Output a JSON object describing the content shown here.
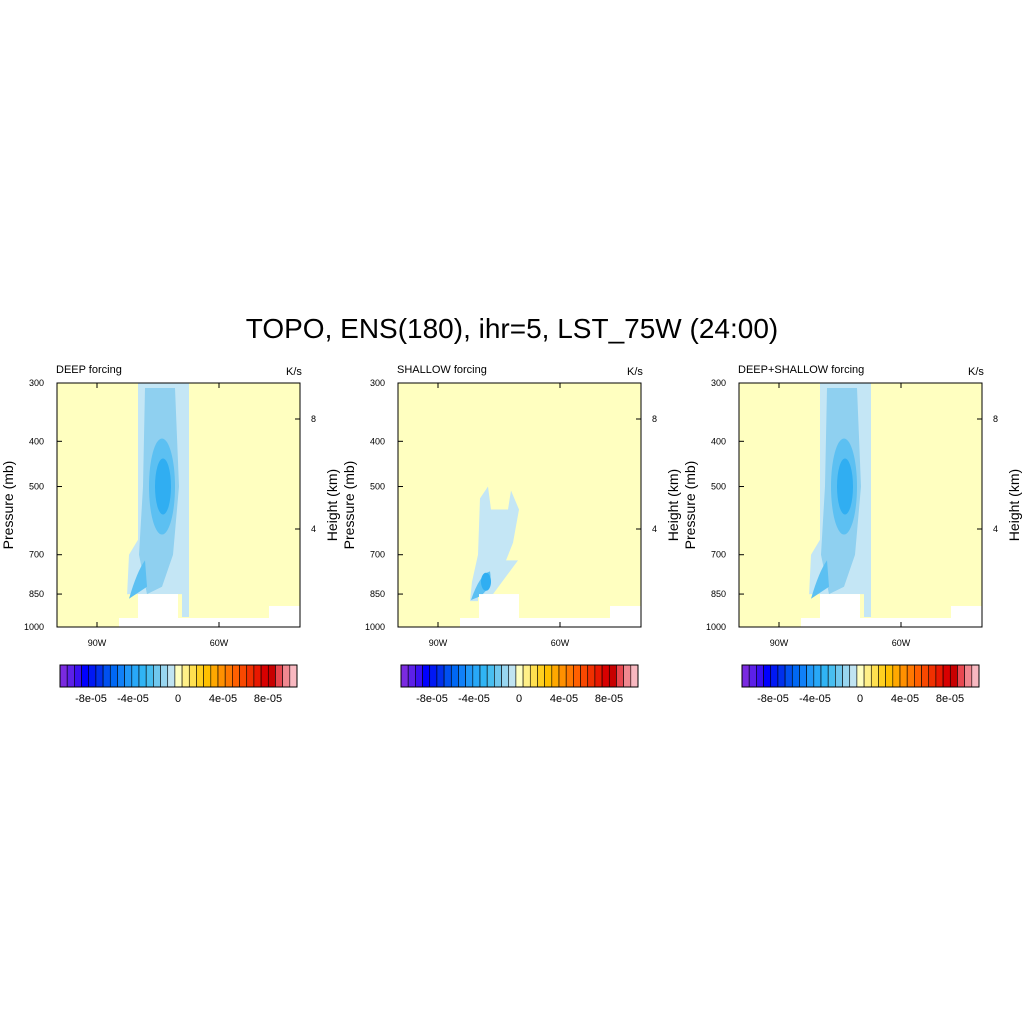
{
  "title": "TOPO, ENS(180), ihr=5, LST_75W (24:00)",
  "colors": {
    "background_field": "#ffffc0",
    "light_blue": "#c4e6f5",
    "mid_blue": "#8fd0f0",
    "deep_blue": "#30aef2",
    "terrain_mask": "#ffffff"
  },
  "colorbar": {
    "labels": [
      "-8e-05",
      "-4e-05",
      "0",
      "4e-05",
      "8e-05"
    ],
    "colors": [
      "#7a2ae0",
      "#5c20e8",
      "#3a10f0",
      "#0000ff",
      "#0018f4",
      "#0030ec",
      "#0050f0",
      "#0068f4",
      "#1080f8",
      "#2098f8",
      "#28a8f8",
      "#30b4f4",
      "#48bef0",
      "#70c8ee",
      "#98d6f0",
      "#c0e4f2",
      "#ffffc0",
      "#fff088",
      "#ffe050",
      "#ffd020",
      "#ffc000",
      "#ffa800",
      "#ff9000",
      "#ff7800",
      "#ff6000",
      "#f84800",
      "#f03000",
      "#e81800",
      "#d80000",
      "#c80000",
      "#e84850",
      "#f08890",
      "#f8b8c0"
    ]
  },
  "chart_data": [
    {
      "type": "heatmap",
      "title": "DEEP forcing",
      "units": "K/s",
      "ylabel": "Pressure (mb)",
      "y2label": "Height (km)",
      "x_ticks": [
        "90W",
        "60W"
      ],
      "y_ticks": [
        300,
        400,
        500,
        700,
        850,
        1000
      ],
      "y2_ticks": [
        8,
        4
      ],
      "ylim": [
        1000,
        300
      ],
      "features": [
        {
          "kind": "negative_plume",
          "x_from": "84W",
          "x_to": "72W",
          "p_top": 300,
          "p_bottom": 850,
          "core_p": 500,
          "min_value": -4e-05
        }
      ]
    },
    {
      "type": "heatmap",
      "title": "SHALLOW forcing",
      "units": "K/s",
      "ylabel": "Pressure (mb)",
      "y2label": "Height (km)",
      "x_ticks": [
        "90W",
        "60W"
      ],
      "y_ticks": [
        300,
        400,
        500,
        700,
        850,
        1000
      ],
      "y2_ticks": [
        8,
        4
      ],
      "ylim": [
        1000,
        300
      ],
      "features": [
        {
          "kind": "negative_plume",
          "x_from": "84W",
          "x_to": "74W",
          "p_top": 500,
          "p_bottom": 900,
          "core_p": 850,
          "min_value": -4e-05
        }
      ]
    },
    {
      "type": "heatmap",
      "title": "DEEP+SHALLOW forcing",
      "units": "K/s",
      "ylabel": "Pressure (mb)",
      "y2label": "Height (km)",
      "x_ticks": [
        "90W",
        "60W"
      ],
      "y_ticks": [
        300,
        400,
        500,
        700,
        850,
        1000
      ],
      "y2_ticks": [
        8,
        4
      ],
      "ylim": [
        1000,
        300
      ],
      "features": [
        {
          "kind": "negative_plume",
          "x_from": "84W",
          "x_to": "72W",
          "p_top": 300,
          "p_bottom": 900,
          "core_p": 500,
          "min_value": -4e-05
        }
      ]
    }
  ]
}
